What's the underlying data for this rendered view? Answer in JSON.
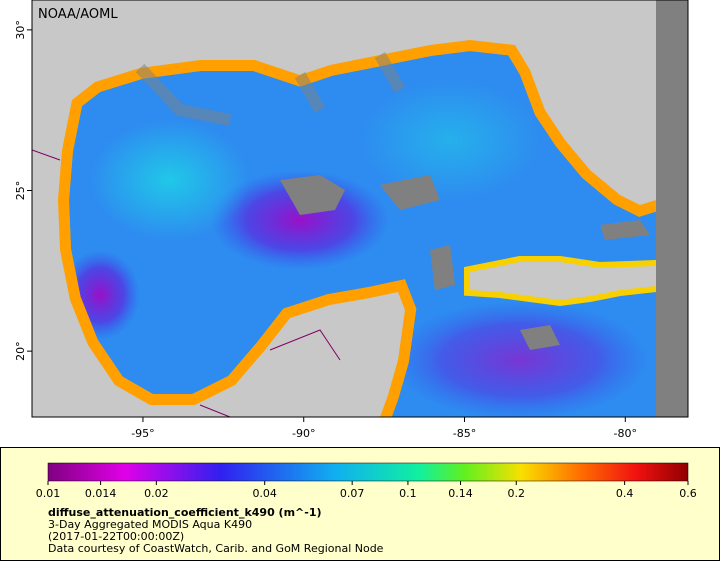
{
  "map": {
    "credit": "NOAA/AOML",
    "lon_range": [
      -98.45,
      -78.05
    ],
    "lat_range": [
      17.95,
      30.93
    ],
    "lon_ticks": [
      {
        "value": -95,
        "label": "-95°"
      },
      {
        "value": -90,
        "label": "-90°"
      },
      {
        "value": -85,
        "label": "-85°"
      },
      {
        "value": -80,
        "label": "-80°"
      }
    ],
    "lat_ticks": [
      {
        "value": 30,
        "label": "30°"
      },
      {
        "value": 25,
        "label": "25°"
      },
      {
        "value": 20,
        "label": "20°"
      }
    ]
  },
  "legend": {
    "colorbar_range": [
      0.01,
      0.6
    ],
    "log_scale": true,
    "colorbar_ticks": [
      0.01,
      0.014,
      0.02,
      0.04,
      0.07,
      0.1,
      0.14,
      0.2,
      0.4,
      0.6
    ],
    "variable": "diffuse_attenuation_coefficient_k490 (m^-1)",
    "lines": [
      "3-Day Aggregated MODIS Aqua K490",
      "(2017-01-22T00:00:00Z)",
      "Data courtesy of CoastWatch, Carib. and GoM Regional Node"
    ]
  }
}
